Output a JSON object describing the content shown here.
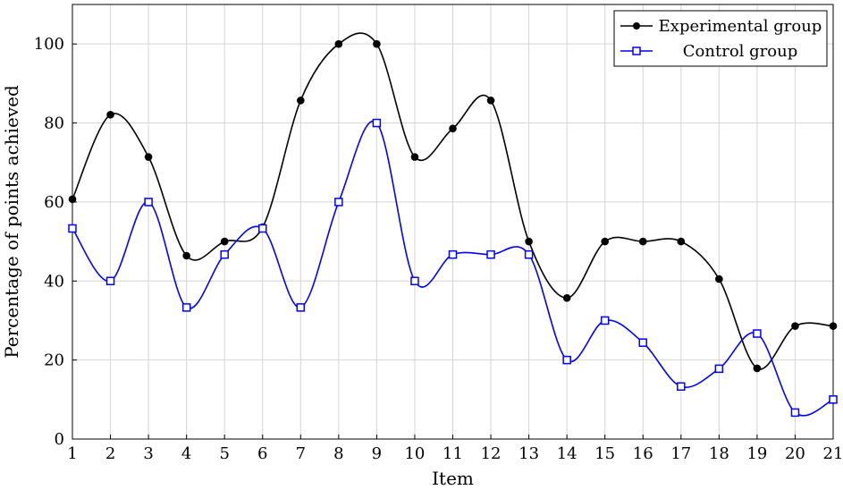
{
  "chart_data": {
    "type": "line",
    "title": "",
    "xlabel": "Item",
    "ylabel": "Percentage of points achieved",
    "xlim": [
      1,
      21
    ],
    "ylim": [
      0,
      110
    ],
    "x_ticks": [
      1,
      2,
      3,
      4,
      5,
      6,
      7,
      8,
      9,
      10,
      11,
      12,
      13,
      14,
      15,
      16,
      17,
      18,
      19,
      20,
      21
    ],
    "y_ticks": [
      0,
      20,
      40,
      60,
      80,
      100
    ],
    "grid": true,
    "legend_position": "top-right",
    "smooth": true,
    "series": [
      {
        "name": "Experimental group",
        "color": "#000000",
        "marker": "circle",
        "values": [
          60.7,
          82.1,
          71.4,
          46.4,
          50.0,
          53.6,
          85.7,
          100.0,
          100.0,
          71.4,
          78.6,
          85.7,
          50.0,
          35.7,
          50.0,
          50.0,
          50.0,
          40.5,
          17.9,
          28.6,
          28.6
        ]
      },
      {
        "name": "Control group",
        "color": "#0000ff",
        "marker": "square",
        "values": [
          53.3,
          40.0,
          60.0,
          33.3,
          46.7,
          53.3,
          33.3,
          60.0,
          80.0,
          40.0,
          46.7,
          46.7,
          46.7,
          20.0,
          30.0,
          24.4,
          13.3,
          17.8,
          26.7,
          6.7,
          10.0
        ]
      }
    ]
  }
}
